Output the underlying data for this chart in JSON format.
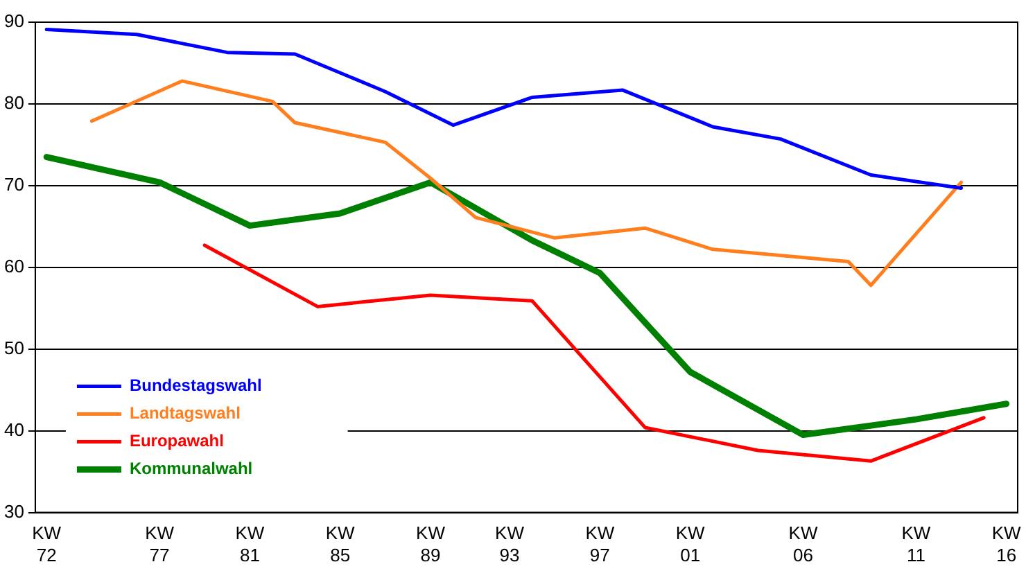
{
  "chart_data": {
    "type": "line",
    "ylim": [
      30,
      90
    ],
    "yticks": [
      30,
      40,
      50,
      60,
      70,
      80,
      90
    ],
    "categories": [
      null,
      "KW 72",
      null,
      null,
      null,
      null,
      null,
      null,
      null,
      null,
      null,
      "KW 77",
      null,
      null,
      null,
      null,
      null,
      null,
      null,
      "KW 81",
      null,
      null,
      null,
      null,
      null,
      null,
      null,
      "KW 85",
      null,
      null,
      null,
      null,
      null,
      null,
      null,
      "KW 89",
      null,
      null,
      null,
      null,
      null,
      null,
      "KW 93",
      null,
      null,
      null,
      null,
      null,
      null,
      null,
      "KW 97",
      null,
      null,
      null,
      null,
      null,
      null,
      null,
      "KW 01",
      null,
      null,
      null,
      null,
      null,
      null,
      null,
      null,
      null,
      "KW 06",
      null,
      null,
      null,
      null,
      null,
      null,
      null,
      null,
      null,
      "KW 11",
      null,
      null,
      null,
      null,
      null,
      null,
      null,
      "KW 16",
      null
    ],
    "grid": "y",
    "legend": "bottom left",
    "marker": "none",
    "line_style": "solid",
    "series": [
      {
        "name": "Bundestagswahl",
        "color": "#0000ff",
        "values": [
          null,
          89.1,
          null,
          null,
          null,
          null,
          null,
          null,
          null,
          88.5,
          null,
          null,
          null,
          null,
          null,
          null,
          null,
          86.3,
          null,
          null,
          null,
          null,
          null,
          86.1,
          null,
          null,
          null,
          null,
          null,
          null,
          null,
          81.5,
          null,
          null,
          null,
          null,
          null,
          77.4,
          null,
          null,
          null,
          null,
          null,
          null,
          80.8,
          null,
          null,
          null,
          null,
          null,
          null,
          null,
          81.7,
          null,
          null,
          null,
          null,
          null,
          null,
          null,
          77.2,
          null,
          null,
          null,
          null,
          null,
          75.7,
          null,
          null,
          null,
          null,
          null,
          null,
          null,
          71.3,
          null,
          null,
          null,
          null,
          null,
          null,
          null,
          69.7,
          null,
          null,
          null,
          null,
          null
        ]
      },
      {
        "name": "Landtagswahl",
        "color": "#ff7f1f",
        "values": [
          null,
          null,
          null,
          null,
          null,
          77.9,
          null,
          null,
          null,
          null,
          null,
          null,
          null,
          82.8,
          null,
          null,
          null,
          null,
          null,
          null,
          null,
          80.3,
          null,
          77.7,
          null,
          null,
          null,
          null,
          null,
          null,
          null,
          75.3,
          null,
          null,
          null,
          70.9,
          null,
          null,
          null,
          66.1,
          null,
          null,
          null,
          null,
          null,
          null,
          63.6,
          null,
          null,
          null,
          null,
          null,
          null,
          null,
          64.8,
          null,
          null,
          null,
          null,
          null,
          62.2,
          null,
          null,
          null,
          null,
          null,
          null,
          null,
          null,
          null,
          null,
          null,
          60.7,
          null,
          57.8,
          null,
          null,
          null,
          null,
          null,
          null,
          null,
          70.4,
          null,
          null,
          null,
          null,
          null
        ]
      },
      {
        "name": "Europawahl",
        "color": "#ff0000",
        "values": [
          null,
          null,
          null,
          null,
          null,
          null,
          null,
          null,
          null,
          null,
          null,
          null,
          null,
          null,
          null,
          62.7,
          null,
          null,
          null,
          null,
          null,
          null,
          null,
          null,
          null,
          55.2,
          null,
          null,
          null,
          null,
          null,
          null,
          null,
          null,
          null,
          56.6,
          null,
          null,
          null,
          null,
          null,
          null,
          null,
          null,
          55.9,
          null,
          null,
          null,
          null,
          null,
          null,
          null,
          null,
          null,
          40.4,
          null,
          null,
          null,
          null,
          null,
          null,
          null,
          null,
          null,
          37.6,
          null,
          null,
          null,
          null,
          null,
          null,
          null,
          null,
          null,
          36.3,
          null,
          null,
          null,
          null,
          null,
          null,
          null,
          null,
          null,
          41.6,
          null,
          null,
          null
        ]
      },
      {
        "name": "Kommunalwahl",
        "color": "#008000",
        "values": [
          null,
          73.5,
          null,
          null,
          null,
          null,
          null,
          null,
          null,
          null,
          null,
          70.4,
          null,
          null,
          null,
          null,
          null,
          null,
          null,
          65.1,
          null,
          null,
          null,
          null,
          null,
          null,
          null,
          66.6,
          null,
          null,
          null,
          null,
          null,
          null,
          null,
          70.4,
          null,
          null,
          null,
          null,
          null,
          null,
          null,
          null,
          63.3,
          null,
          null,
          null,
          null,
          null,
          59.3,
          null,
          null,
          null,
          null,
          null,
          null,
          null,
          47.2,
          null,
          null,
          null,
          null,
          null,
          null,
          null,
          null,
          null,
          39.5,
          null,
          null,
          null,
          null,
          null,
          null,
          null,
          null,
          null,
          41.4,
          null,
          null,
          null,
          null,
          null,
          null,
          null,
          43.3,
          null
        ]
      }
    ]
  }
}
